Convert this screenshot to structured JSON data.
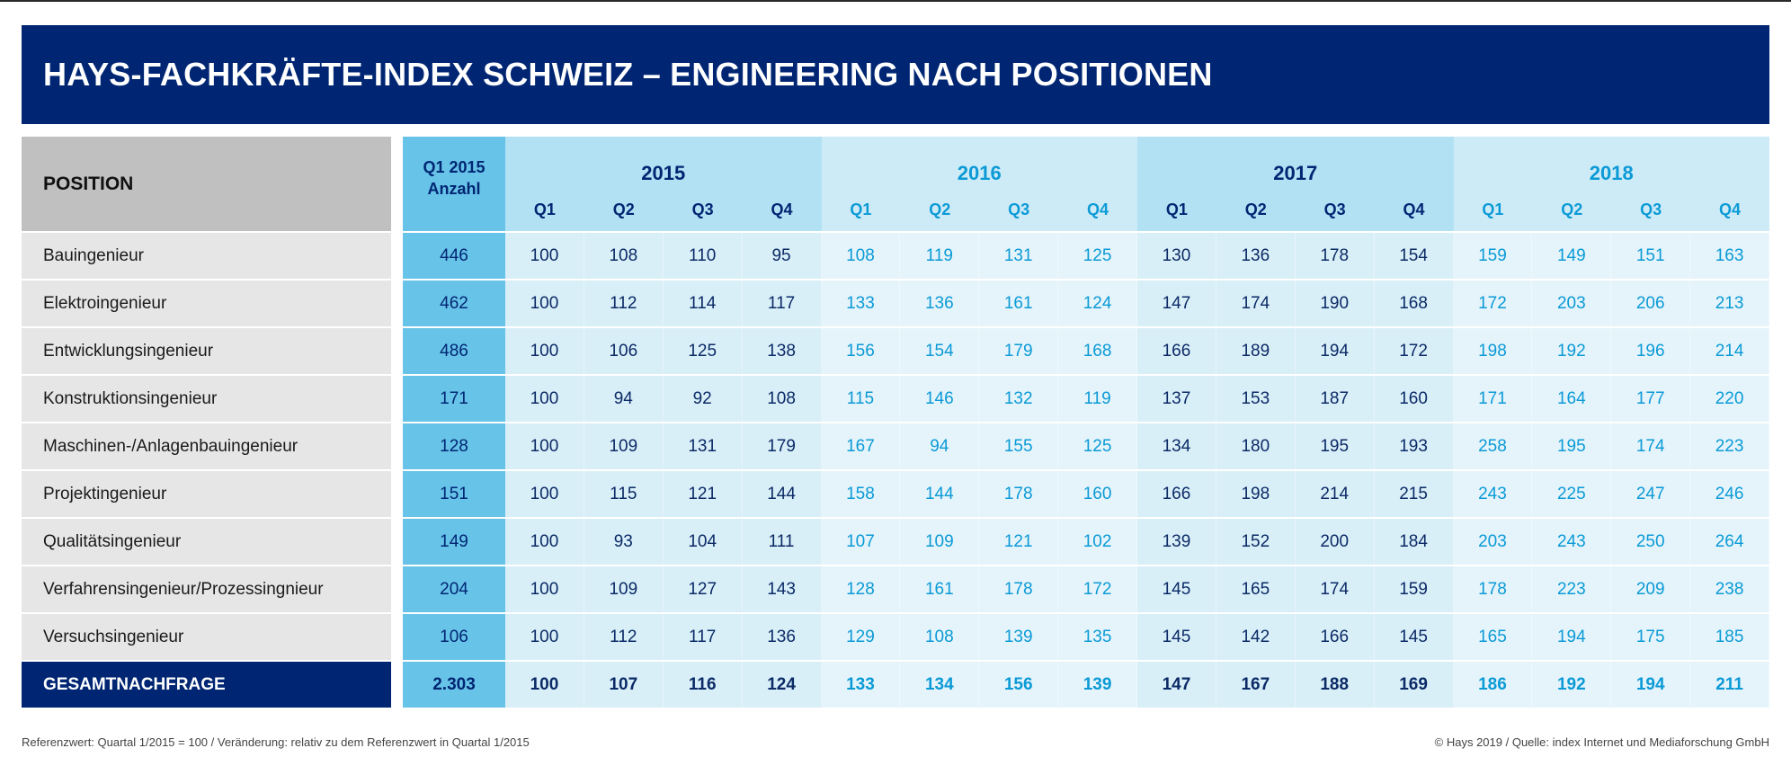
{
  "title": "HAYS-FACHKRÄFTE-INDEX SCHWEIZ – ENGINEERING NACH POSITIONEN",
  "header": {
    "position_label": "POSITION",
    "anzahl_label_line1": "Q1 2015",
    "anzahl_label_line2": "Anzahl",
    "years": [
      {
        "year": "2015",
        "quarters": [
          "Q1",
          "Q2",
          "Q3",
          "Q4"
        ],
        "style": "dark"
      },
      {
        "year": "2016",
        "quarters": [
          "Q1",
          "Q2",
          "Q3",
          "Q4"
        ],
        "style": "light"
      },
      {
        "year": "2017",
        "quarters": [
          "Q1",
          "Q2",
          "Q3",
          "Q4"
        ],
        "style": "dark"
      },
      {
        "year": "2018",
        "quarters": [
          "Q1",
          "Q2",
          "Q3",
          "Q4"
        ],
        "style": "light"
      }
    ]
  },
  "rows": [
    {
      "position": "Bauingenieur",
      "anzahl": "446",
      "values": [
        "100",
        "108",
        "110",
        "95",
        "108",
        "119",
        "131",
        "125",
        "130",
        "136",
        "178",
        "154",
        "159",
        "149",
        "151",
        "163"
      ]
    },
    {
      "position": "Elektroingenieur",
      "anzahl": "462",
      "values": [
        "100",
        "112",
        "114",
        "117",
        "133",
        "136",
        "161",
        "124",
        "147",
        "174",
        "190",
        "168",
        "172",
        "203",
        "206",
        "213"
      ]
    },
    {
      "position": "Entwicklungsingenieur",
      "anzahl": "486",
      "values": [
        "100",
        "106",
        "125",
        "138",
        "156",
        "154",
        "179",
        "168",
        "166",
        "189",
        "194",
        "172",
        "198",
        "192",
        "196",
        "214"
      ]
    },
    {
      "position": "Konstruktionsingenieur",
      "anzahl": "171",
      "values": [
        "100",
        "94",
        "92",
        "108",
        "115",
        "146",
        "132",
        "119",
        "137",
        "153",
        "187",
        "160",
        "171",
        "164",
        "177",
        "220"
      ]
    },
    {
      "position": "Maschinen-/Anlagenbauingenieur",
      "anzahl": "128",
      "values": [
        "100",
        "109",
        "131",
        "179",
        "167",
        "94",
        "155",
        "125",
        "134",
        "180",
        "195",
        "193",
        "258",
        "195",
        "174",
        "223"
      ]
    },
    {
      "position": "Projektingenieur",
      "anzahl": "151",
      "values": [
        "100",
        "115",
        "121",
        "144",
        "158",
        "144",
        "178",
        "160",
        "166",
        "198",
        "214",
        "215",
        "243",
        "225",
        "247",
        "246"
      ]
    },
    {
      "position": "Qualitätsingenieur",
      "anzahl": "149",
      "values": [
        "100",
        "93",
        "104",
        "111",
        "107",
        "109",
        "121",
        "102",
        "139",
        "152",
        "200",
        "184",
        "203",
        "243",
        "250",
        "264"
      ]
    },
    {
      "position": "Verfahrensingenieur/Prozessingnieur",
      "anzahl": "204",
      "values": [
        "100",
        "109",
        "127",
        "143",
        "128",
        "161",
        "178",
        "172",
        "145",
        "165",
        "174",
        "159",
        "178",
        "223",
        "209",
        "238"
      ]
    },
    {
      "position": "Versuchsingenieur",
      "anzahl": "106",
      "values": [
        "100",
        "112",
        "117",
        "136",
        "129",
        "108",
        "139",
        "135",
        "145",
        "142",
        "166",
        "145",
        "165",
        "194",
        "175",
        "185"
      ]
    }
  ],
  "total": {
    "position": "GESAMTNACHFRAGE",
    "anzahl": "2.303",
    "values": [
      "100",
      "107",
      "116",
      "124",
      "133",
      "134",
      "156",
      "139",
      "147",
      "167",
      "188",
      "169",
      "186",
      "192",
      "194",
      "211"
    ]
  },
  "footer": {
    "left": "Referenzwert: Quartal 1/2015 = 100 / Veränderung: relativ zu dem Referenzwert in Quartal 1/2015",
    "right": "© Hays 2019 / Quelle: index Internet und Mediaforschung GmbH"
  },
  "colors": {
    "brand_navy": "#002673",
    "accent_blue": "#0b9ad6",
    "anzahl_blue": "#67c3e8"
  }
}
